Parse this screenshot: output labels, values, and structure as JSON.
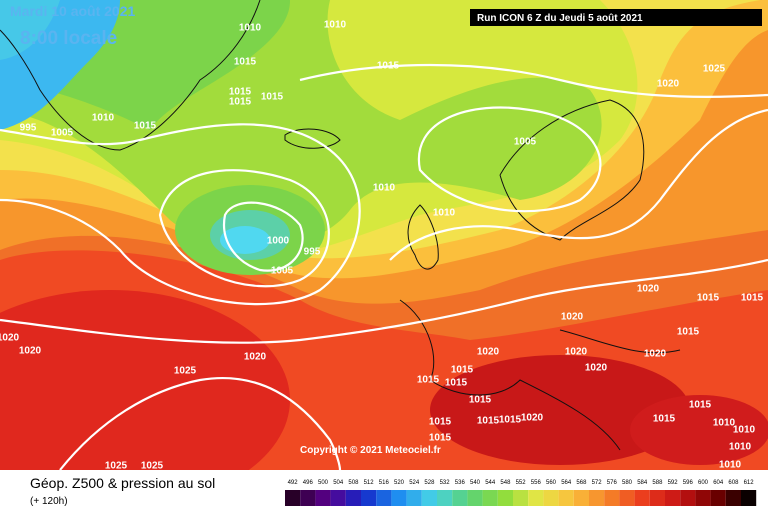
{
  "header": {
    "date": "Mardi 10 août 2021",
    "time": "8:00 locale",
    "run": "Run ICON 6 Z du Jeudi 5 août 2021"
  },
  "copyright": "Copyright © 2021 Meteociel.fr",
  "footer": {
    "title": "Géop. Z500 & pression au sol",
    "lead": "(+ 120h)"
  },
  "scale": [
    492,
    496,
    500,
    504,
    508,
    512,
    516,
    520,
    524,
    528,
    532,
    536,
    540,
    544,
    548,
    552,
    556,
    560,
    564,
    568,
    572,
    576,
    580,
    584,
    588,
    592,
    596,
    600,
    604,
    608,
    612
  ],
  "isobar_labels": [
    "1010",
    "1010",
    "1015",
    "1015",
    "1015",
    "1015",
    "1015",
    "1010",
    "1015",
    "995",
    "1005",
    "1005",
    "1010",
    "1010",
    "1000",
    "995",
    "1005",
    "1020",
    "1025",
    "1020",
    "1015",
    "1015",
    "1020",
    "1020",
    "1020",
    "1020",
    "1020",
    "1025",
    "1020",
    "1020",
    "1020",
    "1015",
    "1015",
    "1015",
    "1015",
    "1015",
    "1015",
    "1015",
    "1015",
    "1015",
    "1015",
    "1020",
    "1015",
    "1010",
    "1010",
    "1010",
    "1010",
    "1025",
    "1025"
  ]
}
